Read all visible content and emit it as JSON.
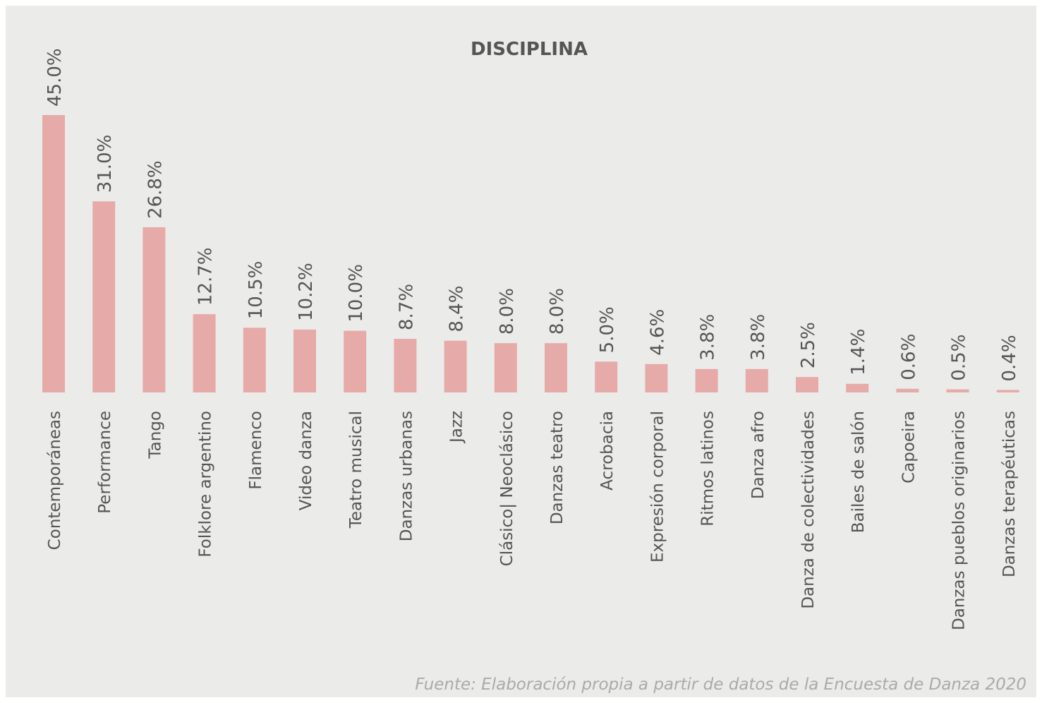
{
  "chart_data": {
    "type": "bar",
    "title": "DISCIPLINA",
    "categories": [
      "Contemporáneas",
      "Performance",
      "Tango",
      "Folklore argentino",
      "Flamenco",
      "Video danza",
      "Teatro musical",
      "Danzas urbanas",
      "Jazz",
      "Clásico| Neoclásico",
      "Danzas teatro",
      "Acrobacia",
      "Expresión corporal",
      "Ritmos latinos",
      "Danza afro",
      "Danza de colectividades",
      "Bailes de salón",
      "Capoeira",
      "Danzas pueblos originarios",
      "Danzas terapéuticas"
    ],
    "values": [
      45,
      31,
      26.8,
      12.7,
      10.5,
      10.2,
      10,
      8.7,
      8.4,
      8,
      8,
      5,
      4.6,
      3.8,
      3.8,
      2.5,
      1.4,
      0.6,
      0.5,
      0.4
    ],
    "value_labels": [
      "45.0%",
      "31.0%",
      "26.8%",
      "12.7%",
      "10.5%",
      "10.2%",
      "10.0%",
      "8.7%",
      "8.4%",
      "8.0%",
      "8.0%",
      "5.0%",
      "4.6%",
      "3.8%",
      "3.8%",
      "2.5%",
      "1.4%",
      "0.6%",
      "0.5%",
      "0.4%"
    ],
    "color": "#e6aba8",
    "source": "Fuente: Elaboración propia a partir de datos de la Encuesta de Danza 2020"
  }
}
